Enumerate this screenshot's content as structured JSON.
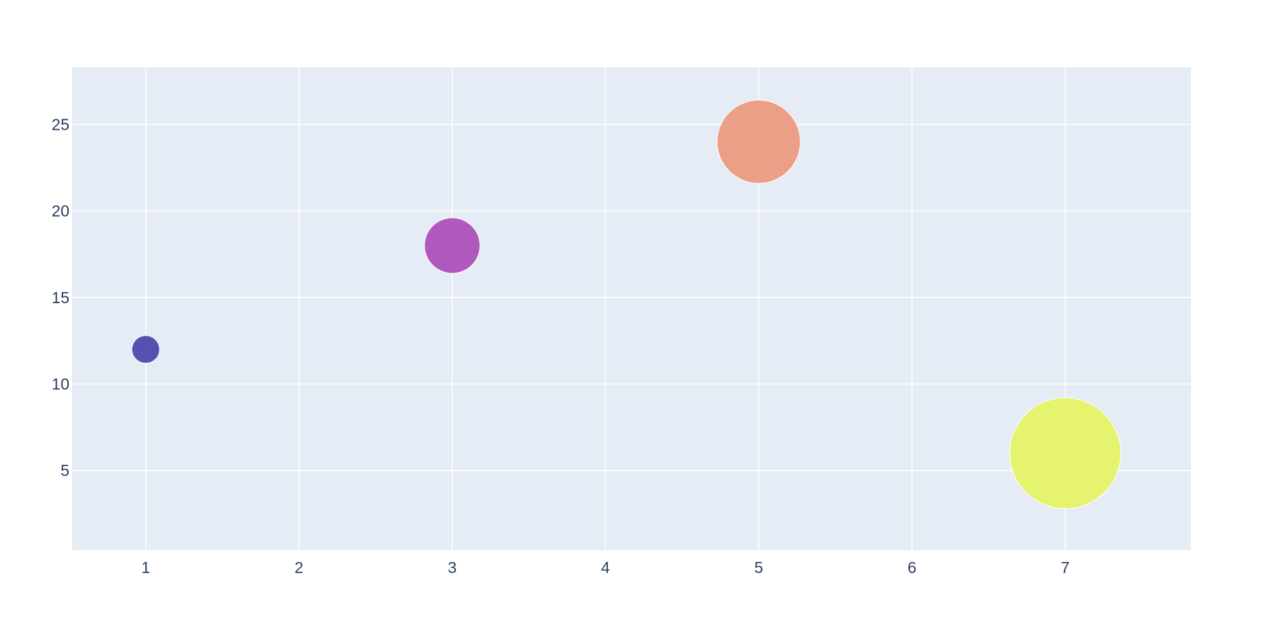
{
  "chart_data": {
    "type": "scatter",
    "variant": "bubble",
    "title": "",
    "xlabel": "",
    "ylabel": "",
    "xlim": [
      0.52,
      7.82
    ],
    "ylim": [
      0.4,
      28.3
    ],
    "x_ticks": [
      1,
      2,
      3,
      4,
      5,
      6,
      7
    ],
    "y_ticks": [
      5,
      10,
      15,
      20,
      25
    ],
    "grid": true,
    "legend": "none",
    "plot_background": "#e5ecf6",
    "grid_color": "#ffffff",
    "tick_color": "#2a3f5f",
    "marker_opacity": 0.8,
    "points": [
      {
        "x": 1,
        "y": 12,
        "size": 10,
        "color": "#2f2aa0"
      },
      {
        "x": 3,
        "y": 18,
        "size": 20,
        "color": "#a233af"
      },
      {
        "x": 5,
        "y": 24,
        "size": 30,
        "color": "#ed8b6a"
      },
      {
        "x": 7,
        "y": 6,
        "size": 40,
        "color": "#e6f54c"
      }
    ]
  }
}
